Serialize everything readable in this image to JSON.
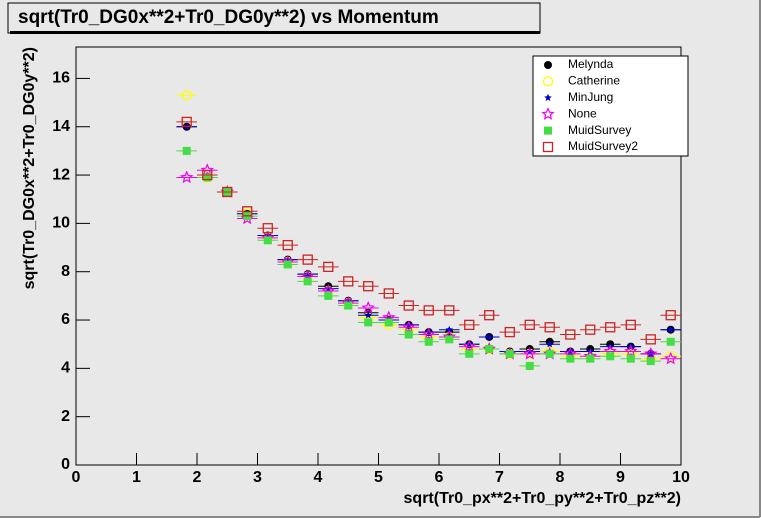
{
  "chart_data": {
    "type": "scatter",
    "title": "sqrt(Tr0_DG0x**2+Tr0_DG0y**2) vs Momentum",
    "x_label": "sqrt(Tr0_px**2+Tr0_py**2+Tr0_pz**2)",
    "y_label": "sqrt(Tr0_DG0x**2+Tr0_DG0y**2)",
    "x": [
      1.83,
      2.17,
      2.5,
      2.83,
      3.17,
      3.5,
      3.83,
      4.17,
      4.5,
      4.83,
      5.17,
      5.5,
      5.83,
      6.17,
      6.5,
      6.83,
      7.17,
      7.5,
      7.83,
      8.17,
      8.5,
      8.83,
      9.17,
      9.5,
      9.83
    ],
    "series": [
      {
        "name": "Melynda",
        "color": "#000000",
        "marker": "circle",
        "values": [
          14.0,
          11.9,
          11.3,
          10.4,
          9.5,
          8.5,
          7.9,
          7.4,
          6.8,
          6.3,
          6.0,
          5.8,
          5.5,
          5.5,
          5.0,
          5.3,
          4.7,
          4.8,
          5.1,
          4.7,
          4.8,
          5.0,
          4.9,
          4.6,
          5.6
        ]
      },
      {
        "name": "Catherine",
        "color": "#ffff00",
        "marker": "open-circle",
        "values": [
          15.3,
          11.9,
          11.3,
          10.4,
          9.4,
          8.4,
          7.8,
          7.2,
          6.7,
          6.1,
          5.8,
          5.6,
          5.3,
          5.3,
          4.8,
          4.8,
          4.6,
          4.6,
          4.7,
          4.5,
          4.5,
          4.6,
          4.6,
          4.4,
          4.5
        ]
      },
      {
        "name": "MinJung",
        "color": "#0000cc",
        "marker": "star",
        "values": [
          14.0,
          11.9,
          11.3,
          10.4,
          9.5,
          8.5,
          7.9,
          7.3,
          6.8,
          6.2,
          6.0,
          5.8,
          5.5,
          5.6,
          5.0,
          5.3,
          4.7,
          4.7,
          5.0,
          4.7,
          4.7,
          4.9,
          4.9,
          4.6,
          5.6
        ]
      },
      {
        "name": "None",
        "color": "#ee00ee",
        "marker": "open-star",
        "values": [
          11.9,
          12.2,
          11.3,
          10.2,
          9.4,
          8.4,
          7.8,
          7.2,
          6.7,
          6.5,
          6.1,
          5.7,
          5.4,
          5.3,
          4.9,
          4.8,
          4.6,
          4.6,
          4.6,
          4.6,
          4.5,
          4.7,
          4.7,
          4.6,
          4.4
        ]
      },
      {
        "name": "MuidSurvey",
        "color": "#44dd44",
        "marker": "square",
        "values": [
          13.0,
          11.9,
          11.3,
          10.3,
          9.3,
          8.3,
          7.6,
          7.0,
          6.6,
          5.9,
          5.9,
          5.4,
          5.1,
          5.2,
          4.6,
          4.8,
          4.6,
          4.1,
          4.6,
          4.4,
          4.4,
          4.5,
          4.4,
          4.3,
          5.1
        ]
      },
      {
        "name": "MuidSurvey2",
        "color": "#cc2222",
        "marker": "open-square",
        "values": [
          14.2,
          12.0,
          11.3,
          10.5,
          9.8,
          9.1,
          8.5,
          8.2,
          7.6,
          7.4,
          7.1,
          6.6,
          6.4,
          6.4,
          5.8,
          6.2,
          5.5,
          5.8,
          5.7,
          5.4,
          5.6,
          5.7,
          5.8,
          5.2,
          6.2
        ]
      }
    ],
    "xlim": [
      0,
      10
    ],
    "xticks": [
      0,
      1,
      2,
      3,
      4,
      5,
      6,
      7,
      8,
      9,
      10
    ],
    "ylim": [
      0,
      17.3
    ],
    "yticks": [
      0,
      2,
      4,
      6,
      8,
      10,
      12,
      14,
      16
    ],
    "legend": "top-right"
  }
}
